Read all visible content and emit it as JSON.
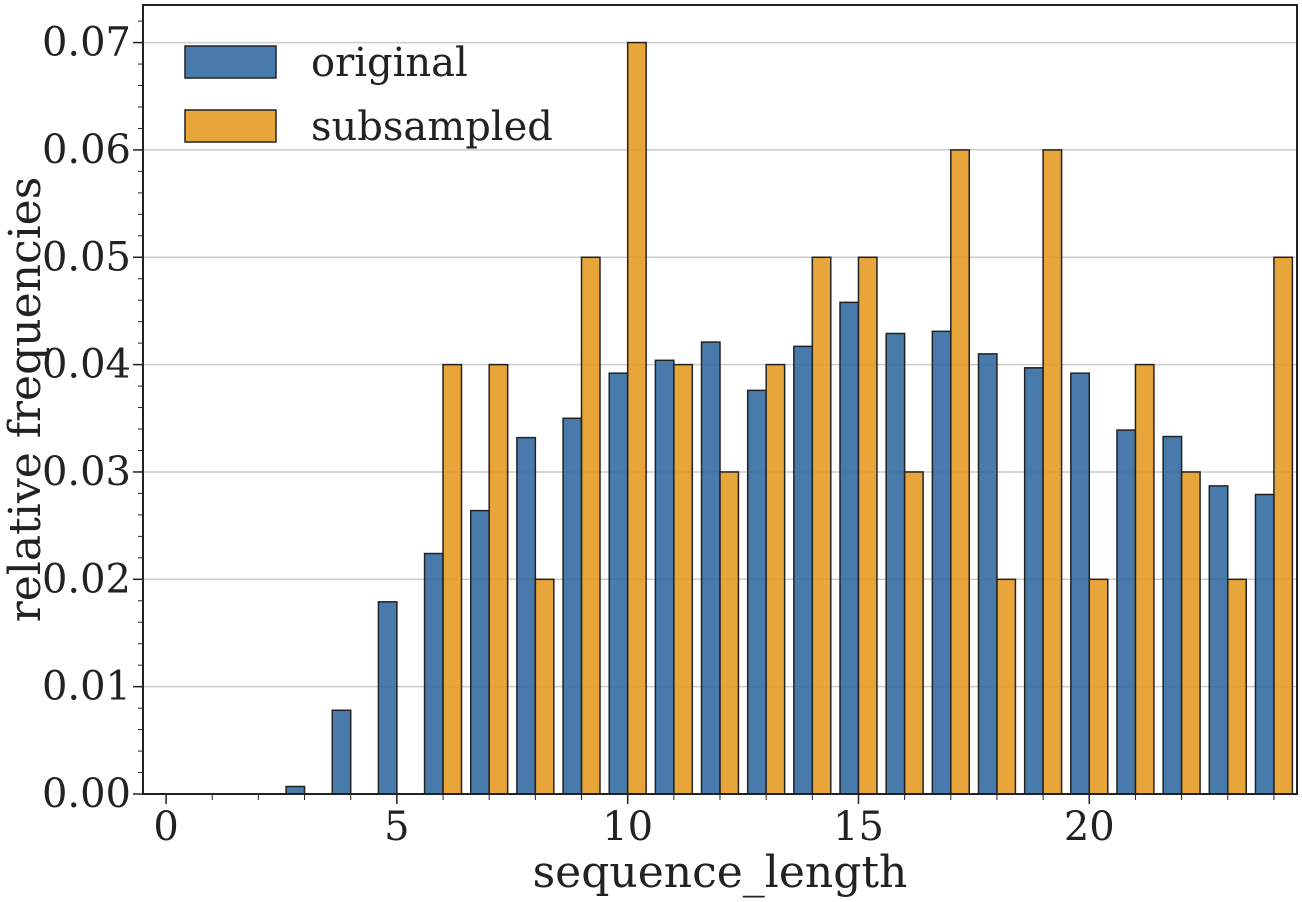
{
  "chart_data": {
    "type": "bar",
    "title": "",
    "xlabel": "sequence_length",
    "ylabel": "relative frequencies",
    "x": [
      0,
      1,
      2,
      3,
      4,
      5,
      6,
      7,
      8,
      9,
      10,
      11,
      12,
      13,
      14,
      15,
      16,
      17,
      18,
      19,
      20,
      21,
      22,
      23,
      24
    ],
    "xticks": [
      0,
      5,
      10,
      15,
      20
    ],
    "xlim": [
      -0.5,
      24.5
    ],
    "ylim": [
      0,
      0.0735
    ],
    "yticks": [
      "0.00",
      "0.01",
      "0.02",
      "0.03",
      "0.04",
      "0.05",
      "0.06",
      "0.07"
    ],
    "grid": "horizontal",
    "legend_position": "top-left",
    "series": [
      {
        "name": "original",
        "color": "#2f69a0",
        "values": [
          0,
          0,
          0,
          0.0007,
          0.0078,
          0.0179,
          0.0224,
          0.0264,
          0.0332,
          0.035,
          0.0392,
          0.0404,
          0.0421,
          0.0376,
          0.0417,
          0.0458,
          0.0429,
          0.0431,
          0.041,
          0.0397,
          0.0392,
          0.0339,
          0.0333,
          0.0287,
          0.0279
        ]
      },
      {
        "name": "subsampled",
        "color": "#e5981f",
        "values": [
          0,
          0,
          0,
          0,
          0,
          0,
          0.04,
          0.04,
          0.02,
          0.05,
          0.07,
          0.04,
          0.03,
          0.04,
          0.05,
          0.05,
          0.03,
          0.06,
          0.02,
          0.06,
          0.02,
          0.04,
          0.03,
          0.02,
          0.05
        ]
      }
    ]
  }
}
